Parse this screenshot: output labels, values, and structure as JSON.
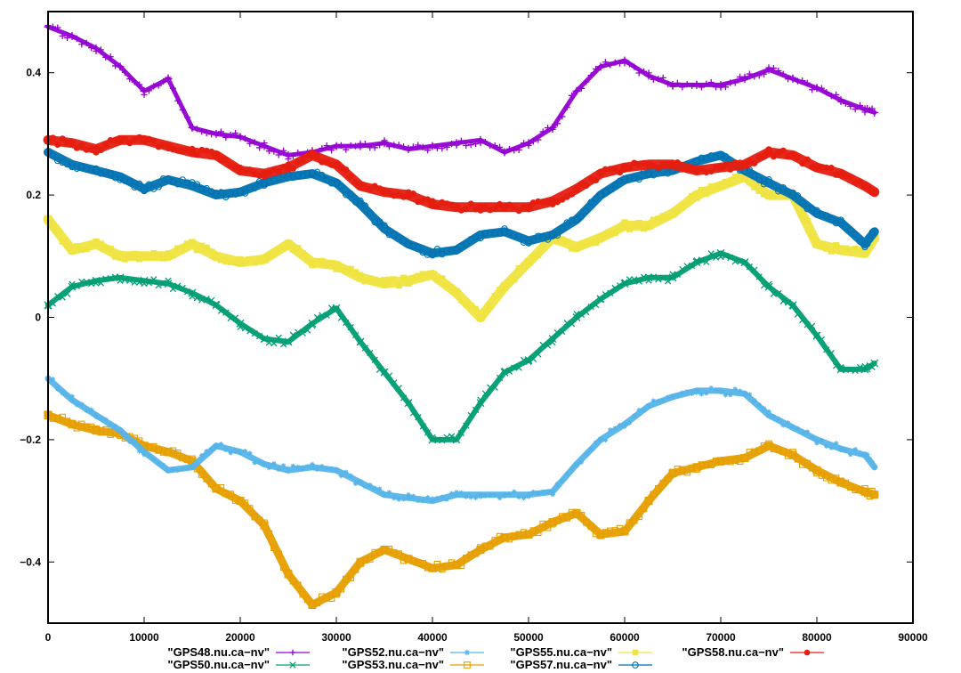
{
  "chart_data": {
    "type": "scatter",
    "title": "",
    "xlabel": "",
    "ylabel": "",
    "xlim": [
      0,
      90000
    ],
    "ylim": [
      -0.5,
      0.5
    ],
    "grid": false,
    "legend_position": "bottom",
    "x_ticks": [
      0,
      10000,
      20000,
      30000,
      40000,
      50000,
      60000,
      70000,
      80000,
      90000
    ],
    "x_tick_labels": [
      "0",
      "10000",
      "20000",
      "30000",
      "40000",
      "50000",
      "60000",
      "70000",
      "80000",
      "90000"
    ],
    "y_ticks": [
      -0.4,
      -0.2,
      0,
      0.2,
      0.4
    ],
    "y_tick_labels": [
      "-0.4",
      "-0.2",
      "0",
      "0.2",
      "0.4"
    ],
    "x": [
      0,
      2500,
      5000,
      7500,
      10000,
      12500,
      15000,
      17500,
      20000,
      22500,
      25000,
      27500,
      30000,
      32500,
      35000,
      37500,
      40000,
      42500,
      45000,
      47500,
      50000,
      52500,
      55000,
      57500,
      60000,
      62500,
      65000,
      67500,
      70000,
      72500,
      75000,
      77500,
      80000,
      82500,
      85000,
      86000
    ],
    "series": [
      {
        "name": "\"GPS48.nu.ca−nv\"",
        "color": "#9400d3",
        "marker": "plus",
        "values": [
          0.475,
          0.46,
          0.44,
          0.41,
          0.37,
          0.39,
          0.31,
          0.3,
          0.295,
          0.28,
          0.265,
          0.27,
          0.28,
          0.28,
          0.285,
          0.275,
          0.28,
          0.285,
          0.29,
          0.27,
          0.285,
          0.31,
          0.37,
          0.41,
          0.42,
          0.395,
          0.38,
          0.38,
          0.38,
          0.39,
          0.405,
          0.39,
          0.375,
          0.355,
          0.34,
          0.335
        ]
      },
      {
        "name": "\"GPS50.nu.ca−nv\"",
        "color": "#009e73",
        "marker": "cross",
        "values": [
          0.02,
          0.05,
          0.06,
          0.065,
          0.06,
          0.055,
          0.04,
          0.02,
          -0.01,
          -0.035,
          -0.04,
          -0.01,
          0.015,
          -0.04,
          -0.09,
          -0.14,
          -0.2,
          -0.2,
          -0.14,
          -0.09,
          -0.07,
          -0.035,
          0.0,
          0.03,
          0.055,
          0.065,
          0.065,
          0.09,
          0.105,
          0.09,
          0.05,
          0.02,
          -0.03,
          -0.085,
          -0.085,
          -0.075
        ]
      },
      {
        "name": "\"GPS52.nu.ca−nv\"",
        "color": "#56b4e9",
        "marker": "asterisk",
        "values": [
          -0.1,
          -0.135,
          -0.16,
          -0.185,
          -0.22,
          -0.25,
          -0.245,
          -0.21,
          -0.22,
          -0.24,
          -0.25,
          -0.245,
          -0.25,
          -0.27,
          -0.29,
          -0.295,
          -0.3,
          -0.29,
          -0.29,
          -0.29,
          -0.29,
          -0.285,
          -0.24,
          -0.2,
          -0.175,
          -0.145,
          -0.13,
          -0.12,
          -0.12,
          -0.125,
          -0.16,
          -0.18,
          -0.2,
          -0.215,
          -0.225,
          -0.245
        ]
      },
      {
        "name": "\"GPS53.nu.ca−nv\"",
        "color": "#e69f00",
        "marker": "open-square",
        "values": [
          -0.16,
          -0.175,
          -0.185,
          -0.19,
          -0.21,
          -0.22,
          -0.235,
          -0.28,
          -0.3,
          -0.34,
          -0.42,
          -0.47,
          -0.45,
          -0.4,
          -0.38,
          -0.395,
          -0.41,
          -0.405,
          -0.38,
          -0.36,
          -0.355,
          -0.335,
          -0.32,
          -0.355,
          -0.35,
          -0.3,
          -0.255,
          -0.245,
          -0.235,
          -0.23,
          -0.21,
          -0.225,
          -0.25,
          -0.27,
          -0.285,
          -0.29
        ]
      },
      {
        "name": "\"GPS55.nu.ca−nv\"",
        "color": "#f0e442",
        "marker": "filled-square",
        "values": [
          0.16,
          0.11,
          0.12,
          0.1,
          0.1,
          0.1,
          0.12,
          0.1,
          0.09,
          0.095,
          0.12,
          0.09,
          0.085,
          0.065,
          0.055,
          0.06,
          0.07,
          0.04,
          0.0,
          0.05,
          0.09,
          0.13,
          0.115,
          0.13,
          0.15,
          0.15,
          0.17,
          0.2,
          0.215,
          0.23,
          0.2,
          0.2,
          0.12,
          0.11,
          0.105,
          0.13
        ]
      },
      {
        "name": "\"GPS57.nu.ca−nv\"",
        "color": "#0072b2",
        "marker": "open-circle",
        "values": [
          0.27,
          0.25,
          0.24,
          0.23,
          0.21,
          0.225,
          0.215,
          0.2,
          0.205,
          0.22,
          0.23,
          0.235,
          0.22,
          0.185,
          0.145,
          0.12,
          0.105,
          0.11,
          0.135,
          0.14,
          0.125,
          0.135,
          0.16,
          0.2,
          0.225,
          0.235,
          0.24,
          0.255,
          0.265,
          0.24,
          0.22,
          0.2,
          0.17,
          0.155,
          0.12,
          0.14
        ]
      },
      {
        "name": "\"GPS58.nu.ca−nv\"",
        "color": "#e51e10",
        "marker": "filled-circle",
        "values": [
          0.29,
          0.285,
          0.275,
          0.29,
          0.29,
          0.28,
          0.27,
          0.265,
          0.24,
          0.235,
          0.245,
          0.265,
          0.25,
          0.215,
          0.205,
          0.2,
          0.185,
          0.18,
          0.18,
          0.18,
          0.18,
          0.19,
          0.21,
          0.235,
          0.245,
          0.25,
          0.25,
          0.24,
          0.245,
          0.25,
          0.27,
          0.265,
          0.245,
          0.235,
          0.215,
          0.205
        ]
      }
    ]
  }
}
